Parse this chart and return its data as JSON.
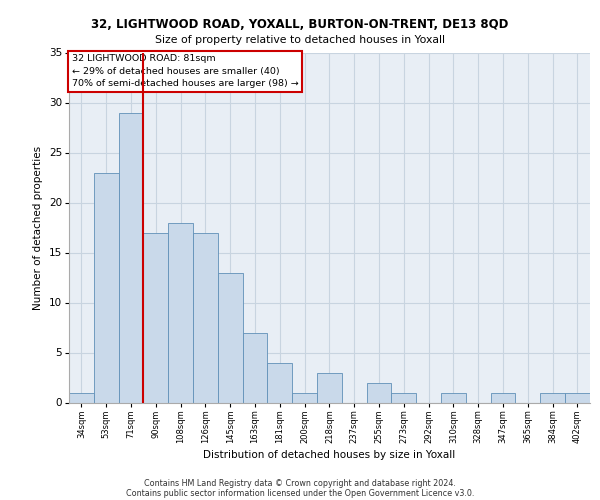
{
  "title_line1": "32, LIGHTWOOD ROAD, YOXALL, BURTON-ON-TRENT, DE13 8QD",
  "title_line2": "Size of property relative to detached houses in Yoxall",
  "xlabel": "Distribution of detached houses by size in Yoxall",
  "ylabel": "Number of detached properties",
  "footnote_line1": "Contains HM Land Registry data © Crown copyright and database right 2024.",
  "footnote_line2": "Contains public sector information licensed under the Open Government Licence v3.0.",
  "bin_labels": [
    "34sqm",
    "53sqm",
    "71sqm",
    "90sqm",
    "108sqm",
    "126sqm",
    "145sqm",
    "163sqm",
    "181sqm",
    "200sqm",
    "218sqm",
    "237sqm",
    "255sqm",
    "273sqm",
    "292sqm",
    "310sqm",
    "328sqm",
    "347sqm",
    "365sqm",
    "384sqm",
    "402sqm"
  ],
  "bar_values": [
    1,
    23,
    29,
    17,
    18,
    17,
    13,
    7,
    4,
    1,
    3,
    0,
    2,
    1,
    0,
    1,
    0,
    1,
    0,
    1,
    1
  ],
  "bar_color": "#c9d9ea",
  "bar_edge_color": "#6090b8",
  "grid_color": "#c8d4e0",
  "bg_color": "#e8eef5",
  "annotation_line1": "32 LIGHTWOOD ROAD: 81sqm",
  "annotation_line2": "← 29% of detached houses are smaller (40)",
  "annotation_line3": "70% of semi-detached houses are larger (98) →",
  "vline_color": "#cc0000",
  "annotation_box_edgecolor": "#cc0000",
  "ylim": [
    0,
    35
  ],
  "yticks": [
    0,
    5,
    10,
    15,
    20,
    25,
    30,
    35
  ]
}
